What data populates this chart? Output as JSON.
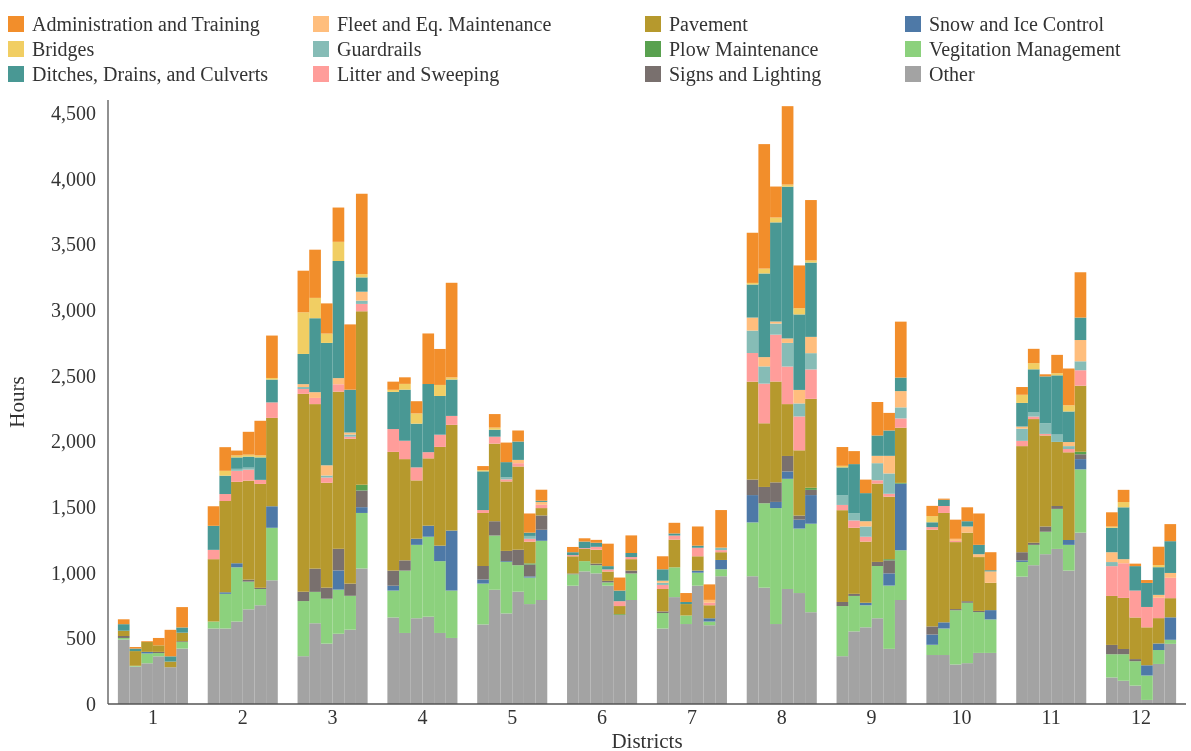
{
  "chart_data": {
    "type": "bar",
    "stacked": true,
    "xlabel": "Districts",
    "ylabel": "Hours",
    "x": [
      0.675,
      0.805,
      0.935,
      1.065,
      1.195,
      1.325,
      1.675,
      1.805,
      1.935,
      2.065,
      2.195,
      2.325,
      2.675,
      2.805,
      2.935,
      3.065,
      3.195,
      3.325,
      3.675,
      3.805,
      3.935,
      4.065,
      4.195,
      4.325,
      4.675,
      4.805,
      4.935,
      5.065,
      5.195,
      5.325,
      5.675,
      5.805,
      5.935,
      6.065,
      6.195,
      6.325,
      6.675,
      6.805,
      6.935,
      7.065,
      7.195,
      7.325,
      7.675,
      7.805,
      7.935,
      8.065,
      8.195,
      8.325,
      8.675,
      8.805,
      8.935,
      9.065,
      9.195,
      9.325,
      9.675,
      9.805,
      9.935,
      10.065,
      10.195,
      10.325,
      10.675,
      10.805,
      10.935,
      11.065,
      11.195,
      11.325,
      11.675,
      11.805,
      11.935,
      12.065,
      12.195,
      12.325
    ],
    "xlim": [
      0.5,
      12.5
    ],
    "xticks": [
      1,
      2,
      3,
      4,
      5,
      6,
      7,
      8,
      9,
      10,
      11,
      12
    ],
    "ylim": [
      0,
      4600
    ],
    "yticks": [
      0,
      500,
      {
        "value": 1000,
        "label": "1,000"
      },
      {
        "value": 1500,
        "label": "1,500"
      },
      {
        "value": 2000,
        "label": "2,000"
      },
      {
        "value": 2500,
        "label": "2,500"
      },
      {
        "value": 3000,
        "label": "3,000"
      },
      {
        "value": 3500,
        "label": "3,500"
      },
      {
        "value": 4000,
        "label": "4,000"
      },
      {
        "value": 4500,
        "label": "4,500"
      }
    ],
    "grid": false,
    "legend": "top",
    "series": [
      {
        "name": "Other",
        "color": "#a3a3a3",
        "values": [
          491,
          285,
          310,
          363,
          280,
          422,
          575,
          575,
          628,
          721,
          752,
          942,
          364,
          615,
          460,
          535,
          566,
          1032,
          659,
          541,
          653,
          665,
          541,
          503,
          606,
          870,
          690,
          855,
          761,
          792,
          901,
          1010,
          995,
          901,
          678,
          792,
          575,
          814,
          609,
          901,
          600,
          973,
          973,
          886,
          609,
          876,
          845,
          699,
          364,
          553,
          584,
          653,
          420,
          792,
          373,
          373,
          301,
          311,
          389,
          389,
          970,
          1057,
          1141,
          1181,
          1016,
          1305,
          202,
          177,
          140,
          31,
          305,
          458
        ]
      },
      {
        "name": "Vegitation Management",
        "color": "#8cd17d",
        "values": [
          12,
          6,
          75,
          25,
          0,
          50,
          53,
          264,
          413,
          211,
          124,
          400,
          420,
          239,
          342,
          336,
          258,
          423,
          205,
          475,
          559,
          609,
          547,
          361,
          311,
          413,
          392,
          202,
          202,
          451,
          87,
          78,
          62,
          25,
          0,
          202,
          118,
          227,
          65,
          99,
          28,
          53,
          410,
          643,
          883,
          839,
          491,
          674,
          382,
          270,
          168,
          398,
          482,
          379,
          78,
          202,
          413,
          460,
          311,
          255,
          112,
          155,
          171,
          305,
          196,
          482,
          177,
          202,
          186,
          186,
          106,
          31
        ]
      },
      {
        "name": "Snow and Ice Control",
        "color": "#4e79a7",
        "values": [
          0,
          0,
          12,
          0,
          0,
          0,
          0,
          12,
          31,
          0,
          0,
          164,
          0,
          0,
          0,
          146,
          0,
          44,
          37,
          0,
          47,
          84,
          118,
          457,
          31,
          0,
          6,
          0,
          9,
          84,
          0,
          0,
          0,
          0,
          0,
          0,
          0,
          0,
          0,
          16,
          25,
          71,
          208,
          0,
          47,
          56,
          68,
          218,
          0,
          0,
          19,
          0,
          93,
          507,
          78,
          47,
          0,
          0,
          0,
          71,
          12,
          0,
          0,
          0,
          37,
          78,
          0,
          0,
          0,
          78,
          50,
          171
        ]
      },
      {
        "name": "Signs and Lighting",
        "color": "#79706e",
        "values": [
          15,
          0,
          0,
          9,
          0,
          6,
          0,
          0,
          0,
          15,
          9,
          0,
          71,
          177,
          84,
          165,
          93,
          127,
          115,
          78,
          0,
          0,
          0,
          0,
          103,
          109,
          78,
          118,
          90,
          109,
          6,
          0,
          12,
          12,
          0,
          22,
          12,
          0,
          0,
          0,
          0,
          0,
          118,
          124,
          149,
          118,
          31,
          40,
          31,
          16,
          0,
          31,
          99,
          0,
          62,
          0,
          9,
          12,
          9,
          0,
          62,
          16,
          40,
          22,
          0,
          37,
          71,
          40,
          16,
          0,
          0,
          0
        ]
      },
      {
        "name": "Plow Maintenance",
        "color": "#59a14f",
        "values": [
          0,
          0,
          0,
          0,
          0,
          0,
          0,
          0,
          0,
          0,
          0,
          0,
          0,
          0,
          0,
          0,
          0,
          44,
          0,
          0,
          0,
          0,
          0,
          0,
          0,
          0,
          0,
          0,
          9,
          0,
          0,
          0,
          0,
          0,
          6,
          0,
          0,
          0,
          0,
          0,
          0,
          0,
          0,
          0,
          0,
          0,
          0,
          16,
          0,
          0,
          0,
          0,
          9,
          6,
          0,
          0,
          0,
          0,
          0,
          0,
          0,
          0,
          0,
          0,
          0,
          19,
          0,
          0,
          0,
          0,
          0,
          0
        ]
      },
      {
        "name": "Pavement",
        "color": "#b6992d",
        "values": [
          40,
          112,
          75,
          50,
          43,
          65,
          475,
          695,
          620,
          754,
          791,
          673,
          1507,
          1253,
          799,
          1197,
          1103,
          1321,
          904,
          771,
          444,
          513,
          752,
          805,
          404,
          591,
          529,
          634,
          165,
          56,
          131,
          93,
          106,
          71,
          62,
          87,
          171,
          211,
          87,
          109,
          99,
          59,
          746,
          485,
          768,
          395,
          497,
          677,
          699,
          503,
          466,
          597,
          476,
          420,
          737,
          833,
          510,
          522,
          410,
          208,
          808,
          942,
          693,
          488,
          668,
          503,
          373,
          389,
          317,
          289,
          193,
          146
        ]
      },
      {
        "name": "Litter and Sweeping",
        "color": "#ff9d9a",
        "values": [
          0,
          0,
          0,
          0,
          0,
          0,
          71,
          53,
          84,
          84,
          31,
          118,
          37,
          47,
          40,
          56,
          16,
          56,
          174,
          140,
          99,
          47,
          93,
          68,
          22,
          53,
          16,
          25,
          22,
          25,
          9,
          6,
          22,
          16,
          37,
          16,
          31,
          31,
          0,
          65,
          19,
          16,
          218,
          302,
          357,
          286,
          258,
          224,
          40,
          56,
          37,
          25,
          22,
          71,
          19,
          53,
          9,
          0,
          0,
          0,
          40,
          19,
          12,
          0,
          25,
          118,
          227,
          264,
          205,
          155,
          155,
          155
        ]
      },
      {
        "name": "Guardrails",
        "color": "#86bcb6",
        "values": [
          0,
          0,
          0,
          0,
          0,
          0,
          0,
          0,
          15,
          15,
          0,
          null,
          15,
          0,
          15,
          0,
          16,
          25,
          0,
          0,
          0,
          0,
          0,
          0,
          0,
          0,
          16,
          0,
          22,
          0,
          0,
          0,
          0,
          0,
          0,
          0,
          16,
          0,
          0,
          0,
          0,
          19,
          171,
          131,
          84,
          180,
          99,
          124,
          75,
          56,
          78,
          130,
          155,
          84,
          0,
          0,
          0,
          0,
          0,
          0,
          93,
          31,
          81,
          56,
          22,
          68,
          31,
          0,
          0,
          0,
          0,
          0
        ]
      },
      {
        "name": "Fleet and Eq. Maintenance",
        "color": "#ffbe7d",
        "values": [
          0,
          0,
          0,
          0,
          0,
          0,
          0,
          0,
          0,
          0,
          0,
          0,
          22,
          44,
          78,
          47,
          16,
          68,
          0,
          0,
          0,
          0,
          0,
          0,
          0,
          0,
          0,
          25,
          0,
          22,
          0,
          0,
          0,
          0,
          0,
          0,
          16,
          0,
          0,
          0,
          22,
          0,
          99,
          71,
          16,
          34,
          103,
          124,
          0,
          0,
          40,
          56,
          134,
          124,
          0,
          0,
          16,
          47,
          22,
          87,
          16,
          0,
          0,
          0,
          31,
          162,
          75,
          31,
          0,
          0,
          22,
          37
        ]
      },
      {
        "name": "Ditches, Drains, and Culverts",
        "color": "#499894",
        "values": [
          50,
          19,
          0,
          0,
          40,
          40,
          183,
          140,
          87,
          84,
          171,
          174,
          230,
          563,
          932,
          892,
          326,
          109,
          283,
          389,
          333,
          519,
          295,
          277,
          295,
          53,
          115,
          140,
          25,
          9,
          22,
          50,
          31,
          25,
          81,
          31,
          87,
          16,
          16,
          16,
          0,
          0,
          252,
          637,
          755,
          1156,
          575,
          566,
          211,
          373,
          214,
          155,
          193,
          103,
          37,
          47,
          0,
          40,
          71,
          9,
          180,
          329,
          357,
          451,
          233,
          171,
          186,
          395,
          186,
          183,
          211,
          242
        ]
      },
      {
        "name": "Bridges",
        "color": "#f1ce63",
        "values": [
          0,
          0,
          0,
          0,
          0,
          0,
          0,
          37,
          15,
          15,
          15,
          12,
          317,
          155,
          71,
          146,
          0,
          25,
          16,
          44,
          78,
          0,
          84,
          16,
          9,
          16,
          0,
          0,
          0,
          0,
          0,
          0,
          0,
          0,
          0,
          0,
          0,
          0,
          0,
          0,
          0,
          0,
          12,
          37,
          37,
          16,
          47,
          16,
          12,
          0,
          0,
          0,
          0,
          0,
          47,
          0,
          0,
          0,
          0,
          0,
          62,
          47,
          0,
          16,
          47,
          0,
          9,
          40,
          0,
          0,
          16,
          0
        ]
      },
      {
        "name": "Administration and Training",
        "color": "#f28e2b",
        "values": [
          37,
          12,
          6,
          56,
          202,
          155,
          149,
          180,
          37,
          174,
          264,
          323,
          317,
          367,
          230,
          261,
          497,
          612,
          62,
          50,
          93,
          385,
          274,
          721,
          31,
          103,
          149,
          84,
          146,
          84,
          40,
          25,
          22,
          171,
          99,
          134,
          99,
          81,
          68,
          146,
          118,
          286,
          382,
          948,
          236,
          597,
          326,
          460,
          143,
          99,
          103,
          255,
          134,
          426,
          78,
          9,
          146,
          106,
          239,
          137,
          59,
          109,
          16,
          140,
          280,
          345,
          109,
          93,
          19,
          22,
          140,
          130
        ]
      }
    ]
  }
}
